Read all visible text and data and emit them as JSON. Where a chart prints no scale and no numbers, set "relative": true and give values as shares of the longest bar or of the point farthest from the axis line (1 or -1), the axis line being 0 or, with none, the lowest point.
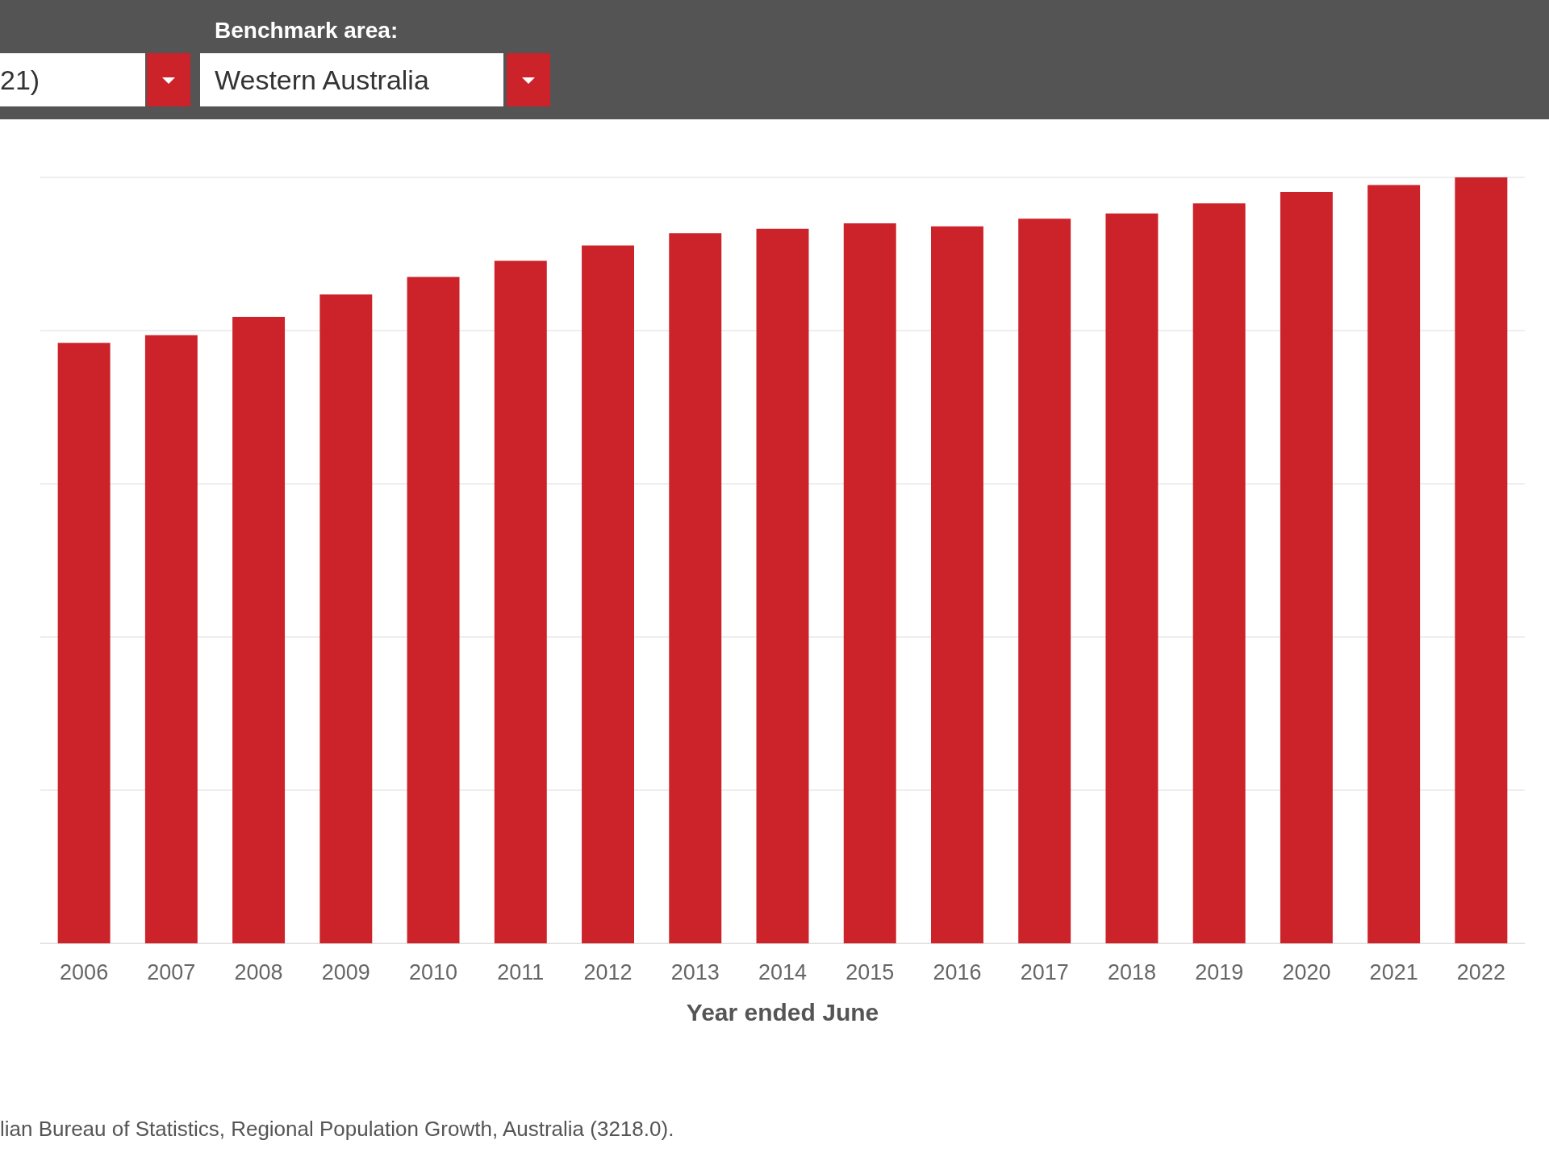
{
  "chart_data": {
    "type": "bar",
    "relative": true,
    "xlabel": "Year ended June",
    "categories": [
      "2006",
      "2007",
      "2008",
      "2009",
      "2010",
      "2011",
      "2012",
      "2013",
      "2014",
      "2015",
      "2016",
      "2017",
      "2018",
      "2019",
      "2020",
      "2021",
      "2022"
    ],
    "values": [
      0.784,
      0.794,
      0.818,
      0.847,
      0.87,
      0.891,
      0.911,
      0.927,
      0.933,
      0.94,
      0.936,
      0.946,
      0.953,
      0.966,
      0.981,
      0.99,
      1
    ],
    "color": "#cc2229",
    "grid": "y",
    "annotations": [
      "21)",
      "Benchmark area:",
      "Western Australia",
      "lian Bureau of Statistics, Regional Population Growth, Australia (3218.0)."
    ]
  }
}
